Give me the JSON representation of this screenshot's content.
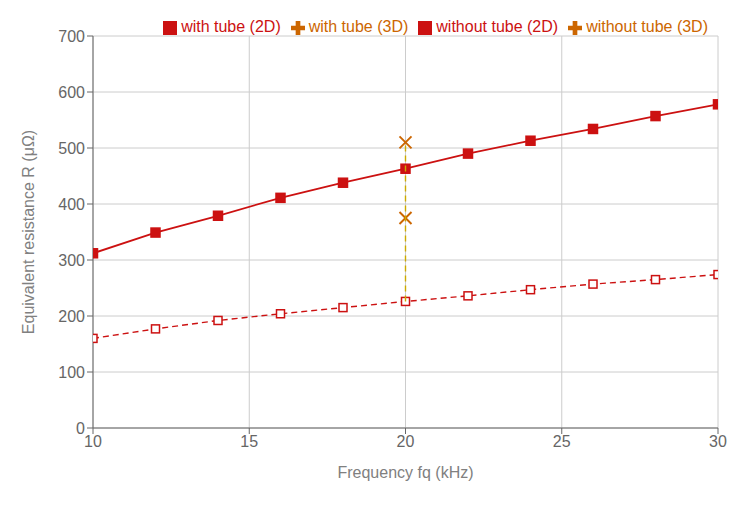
{
  "chart_data": {
    "type": "line",
    "x_label": "Frequency fq (kHz)",
    "y_label": "Equivalent resistance R (μΩ)",
    "xlim": [
      10,
      30
    ],
    "xticks": [
      10,
      15,
      20,
      25,
      30
    ],
    "ylim": [
      0,
      700
    ],
    "yticks": [
      0,
      100,
      200,
      300,
      400,
      500,
      600,
      700
    ],
    "grid": true,
    "legend": "upper right",
    "series": [
      {
        "name": "without tube (2D)",
        "type": "line",
        "color": "#cc1111",
        "marker": "square",
        "line_style": "dashed",
        "x": [
          10,
          12,
          14,
          16,
          18,
          20,
          22,
          24,
          26,
          28,
          30
        ],
        "values": [
          160,
          177,
          192,
          204,
          215,
          226,
          236,
          247,
          257,
          265,
          274
        ]
      },
      {
        "name": "with tube (2D)",
        "type": "line",
        "color": "#cc1111",
        "marker": "square",
        "line_style": "solid",
        "x": [
          10,
          12,
          14,
          16,
          18,
          20,
          22,
          24,
          26,
          28,
          30
        ],
        "values": [
          312,
          349,
          379,
          411,
          438,
          463,
          490,
          513,
          534,
          557,
          578
        ]
      },
      {
        "name": "without tube (3D)",
        "type": "scatter",
        "color": "#cc6600",
        "marker": "x",
        "x": [
          20
        ],
        "values": [
          375
        ]
      },
      {
        "name": "with tube (3D)",
        "type": "scatter",
        "color": "#cc6600",
        "marker": "x",
        "x": [
          20
        ],
        "values": [
          510
        ]
      },
      {
        "type": "line",
        "color": "#ccaa00",
        "line_style": "dashed",
        "x": [
          20,
          20
        ],
        "values": [
          226,
          510
        ]
      }
    ]
  }
}
